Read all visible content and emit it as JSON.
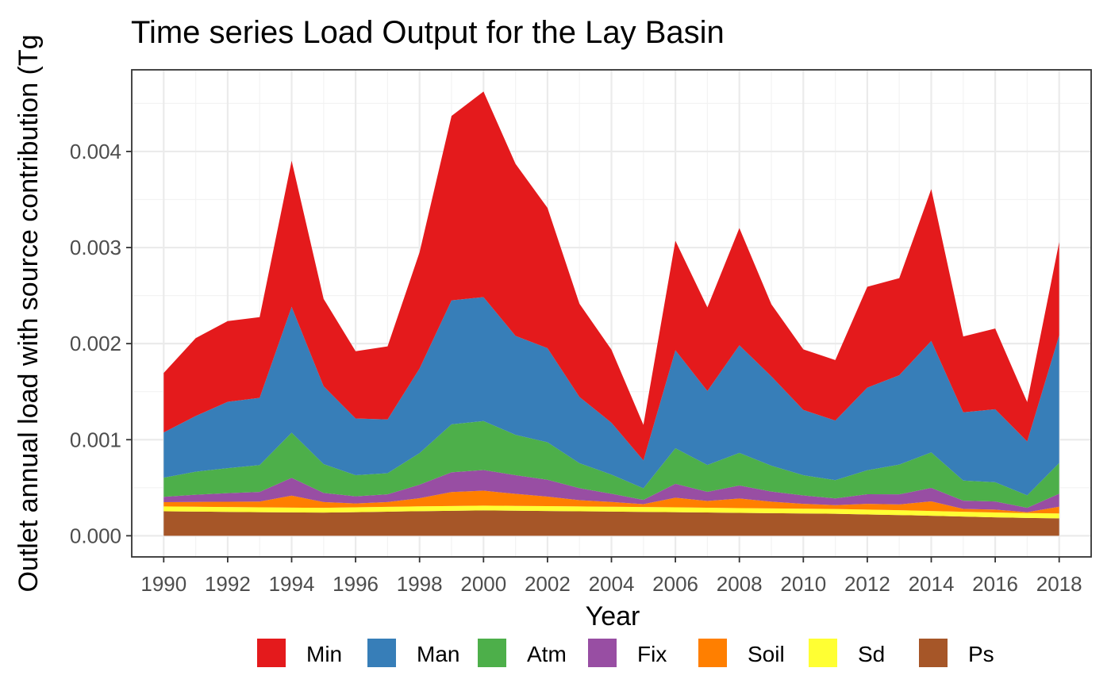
{
  "chart_data": {
    "type": "area",
    "stacked": true,
    "title": "Time series Load Output for the Lay Basin",
    "xlabel": "Year",
    "ylabel": "Outlet annual load with source contribution (Tg",
    "xlim": [
      1989,
      2019
    ],
    "ylim": [
      -0.00022,
      0.00485
    ],
    "y_ticks": [
      "0.000",
      "0.001",
      "0.002",
      "0.003",
      "0.004"
    ],
    "y_tick_values": [
      0,
      0.001,
      0.002,
      0.003,
      0.004
    ],
    "x_ticks": [
      "1990",
      "1992",
      "1994",
      "1996",
      "1998",
      "2000",
      "2002",
      "2004",
      "2006",
      "2008",
      "2010",
      "2012",
      "2014",
      "2016",
      "2018"
    ],
    "x_tick_values": [
      1990,
      1992,
      1994,
      1996,
      1998,
      2000,
      2002,
      2004,
      2006,
      2008,
      2010,
      2012,
      2014,
      2016,
      2018
    ],
    "grid": true,
    "legend_position": "bottom",
    "x": [
      1990,
      1991,
      1992,
      1993,
      1994,
      1995,
      1996,
      1997,
      1998,
      1999,
      2000,
      2001,
      2002,
      2003,
      2004,
      2005,
      2006,
      2007,
      2008,
      2009,
      2010,
      2011,
      2012,
      2013,
      2014,
      2015,
      2016,
      2017,
      2018
    ],
    "series": [
      {
        "name": "Ps",
        "color": "#A65628",
        "values": [
          0.000255,
          0.000252,
          0.000249,
          0.000246,
          0.000243,
          0.000241,
          0.000246,
          0.000251,
          0.000256,
          0.00026,
          0.000264,
          0.000261,
          0.000258,
          0.000255,
          0.000252,
          0.000249,
          0.000246,
          0.000242,
          0.000238,
          0.000235,
          0.000232,
          0.000229,
          0.000222,
          0.000216,
          0.000208,
          0.0002,
          0.000192,
          0.000186,
          0.000182
        ]
      },
      {
        "name": "Sd",
        "color": "#FFFF33",
        "values": [
          5e-05,
          5e-05,
          5e-05,
          5e-05,
          5e-05,
          5e-05,
          5e-05,
          5e-05,
          5e-05,
          5e-05,
          5e-05,
          5e-05,
          5e-05,
          5e-05,
          5e-05,
          5e-05,
          5e-05,
          5e-05,
          5e-05,
          5e-05,
          5e-05,
          5e-05,
          5e-05,
          5e-05,
          5e-05,
          5e-05,
          5e-05,
          5e-05,
          5e-05
        ]
      },
      {
        "name": "Soil",
        "color": "#FF7F00",
        "values": [
          4.5e-05,
          5e-05,
          5.5e-05,
          6e-05,
          0.000125,
          6e-05,
          4e-05,
          5e-05,
          8.5e-05,
          0.000145,
          0.000155,
          0.000125,
          0.0001,
          6.5e-05,
          5e-05,
          3e-05,
          0.0001,
          7e-05,
          0.0001,
          7e-05,
          5e-05,
          4e-05,
          6e-05,
          6e-05,
          0.0001,
          3e-05,
          3e-05,
          1e-05,
          7e-05
        ]
      },
      {
        "name": "Fix",
        "color": "#984EA3",
        "values": [
          5.5e-05,
          7.5e-05,
          9e-05,
          0.0001,
          0.000185,
          9.5e-05,
          7.5e-05,
          8e-05,
          0.00014,
          0.000205,
          0.000215,
          0.000195,
          0.000175,
          0.000125,
          8.5e-05,
          4.5e-05,
          0.000145,
          9.5e-05,
          0.000135,
          0.000105,
          8.8e-05,
          7e-05,
          0.0001,
          0.000105,
          0.00014,
          8.5e-05,
          8.5e-05,
          4.5e-05,
          0.000135
        ]
      },
      {
        "name": "Atm",
        "color": "#4DAF4A",
        "values": [
          0.0002,
          0.00024,
          0.00026,
          0.00028,
          0.00047,
          0.0003,
          0.00022,
          0.00022,
          0.00033,
          0.0005,
          0.00051,
          0.00042,
          0.00039,
          0.00026,
          0.0002,
          0.00012,
          0.00037,
          0.00028,
          0.00034,
          0.00027,
          0.00021,
          0.00019,
          0.00025,
          0.00031,
          0.00037,
          0.00021,
          0.0002,
          0.00013,
          0.00032
        ]
      },
      {
        "name": "Man",
        "color": "#377EB8",
        "values": [
          0.00047,
          0.00058,
          0.00069,
          0.0007,
          0.00131,
          0.00081,
          0.00059,
          0.00056,
          0.00088,
          0.00129,
          0.00129,
          0.00103,
          0.00098,
          0.00069,
          0.00054,
          0.00029,
          0.00102,
          0.00077,
          0.00112,
          0.00093,
          0.00068,
          0.00062,
          0.00086,
          0.00093,
          0.00116,
          0.00071,
          0.00076,
          0.00056,
          0.00133
        ]
      },
      {
        "name": "Min",
        "color": "#E41A1C",
        "values": [
          0.00062,
          0.00081,
          0.00084,
          0.00084,
          0.00152,
          0.00091,
          0.0007,
          0.00076,
          0.00121,
          0.00192,
          0.00214,
          0.00179,
          0.00146,
          0.00097,
          0.00076,
          0.00037,
          0.00114,
          0.00087,
          0.00122,
          0.00075,
          0.00063,
          0.00063,
          0.00105,
          0.00101,
          0.00158,
          0.00079,
          0.00084,
          0.00041,
          0.00097
        ]
      }
    ],
    "legend_order": [
      "Min",
      "Man",
      "Atm",
      "Fix",
      "Soil",
      "Sd",
      "Ps"
    ]
  }
}
